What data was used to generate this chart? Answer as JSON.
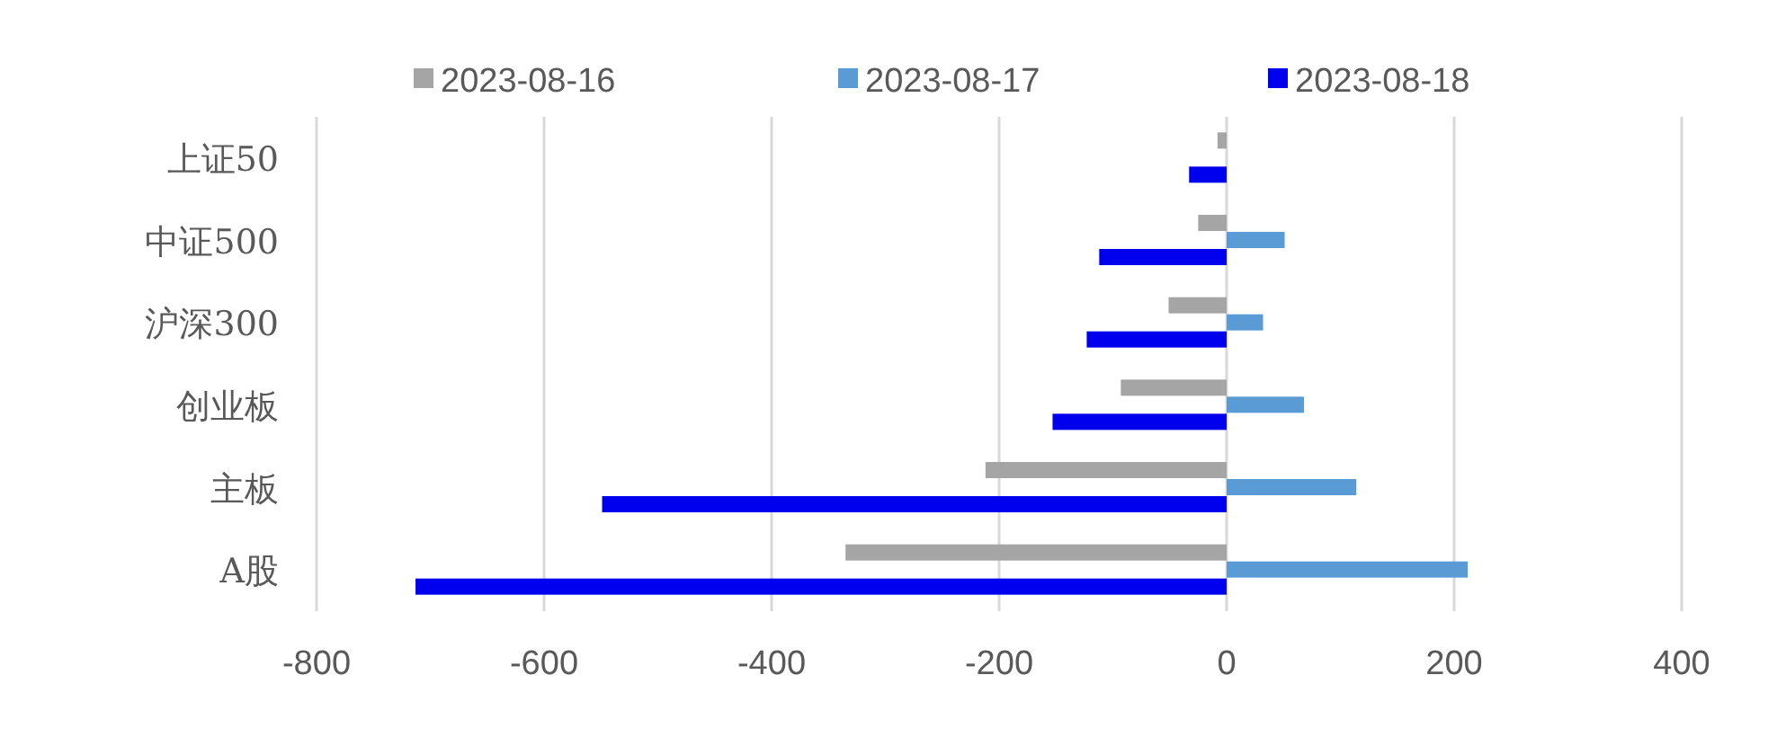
{
  "chart_data": {
    "type": "bar",
    "orientation": "horizontal",
    "categories": [
      "上证50",
      "中证500",
      "沪深300",
      "创业板",
      "主板",
      "A股"
    ],
    "series": [
      {
        "name": "2023-08-16",
        "color": "#a5a5a5",
        "values": [
          -8,
          -25,
          -51,
          -93,
          -212,
          -335
        ]
      },
      {
        "name": "2023-08-17",
        "color": "#5b9bd5",
        "values": [
          null,
          51,
          32,
          68,
          114,
          212
        ]
      },
      {
        "name": "2023-08-18",
        "color": "#0000ee",
        "values": [
          -33,
          -112,
          -123,
          -153,
          -549,
          -713
        ]
      }
    ],
    "xlim": [
      -800,
      400
    ],
    "xticks": [
      -800,
      -600,
      -400,
      -200,
      0,
      200,
      400
    ],
    "grid": "x",
    "legend": "top"
  }
}
